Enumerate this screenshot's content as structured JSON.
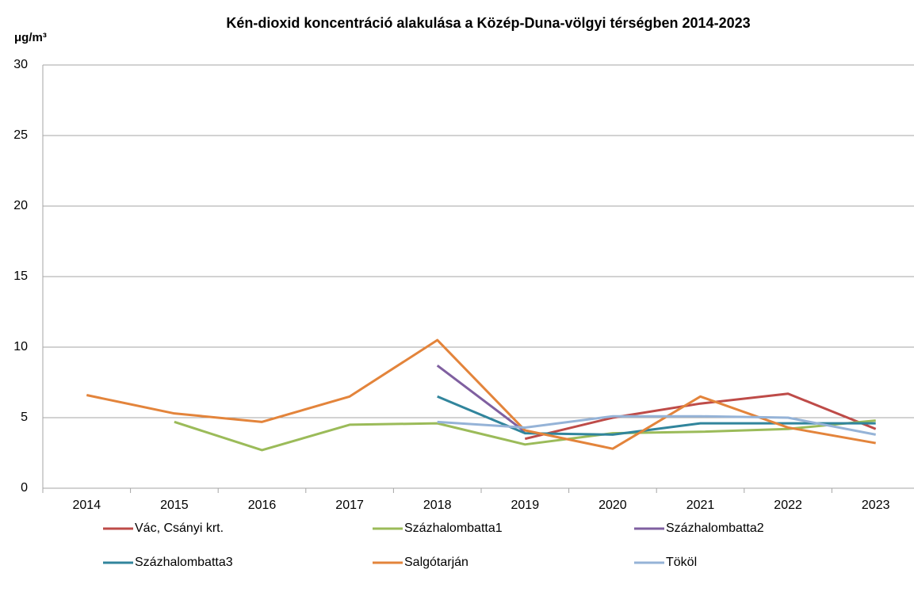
{
  "chart_data": {
    "type": "line",
    "title": "Kén-dioxid koncentráció alakulása a Közép-Duna-völgyi térségben 2014-2023",
    "y_label": "μg/m³",
    "categories": [
      "2014",
      "2015",
      "2016",
      "2017",
      "2018",
      "2019",
      "2020",
      "2021",
      "2022",
      "2023"
    ],
    "series": [
      {
        "name": "Vác, Csányi krt.",
        "color": "#be4b48",
        "values": [
          null,
          null,
          null,
          null,
          null,
          3.5,
          5.0,
          6.0,
          6.7,
          4.2
        ]
      },
      {
        "name": "Százhalombatta1",
        "color": "#9bbb59",
        "values": [
          null,
          4.7,
          2.7,
          4.5,
          4.6,
          3.1,
          3.9,
          4.0,
          4.2,
          4.8
        ]
      },
      {
        "name": "Százhalombatta2",
        "color": "#7f5fa0",
        "values": [
          null,
          null,
          null,
          null,
          8.7,
          4.0,
          null,
          null,
          null,
          null
        ]
      },
      {
        "name": "Százhalombatta3",
        "color": "#31859c",
        "values": [
          null,
          null,
          null,
          null,
          6.5,
          3.9,
          3.8,
          4.6,
          4.6,
          4.6
        ]
      },
      {
        "name": "Salgótarján",
        "color": "#e3843b",
        "values": [
          6.6,
          5.3,
          4.7,
          6.5,
          10.5,
          4.1,
          2.8,
          6.5,
          4.3,
          3.2
        ]
      },
      {
        "name": "Tököl",
        "color": "#95b3d7",
        "values": [
          null,
          null,
          null,
          null,
          4.7,
          4.3,
          5.1,
          5.1,
          5.0,
          3.8
        ]
      }
    ],
    "ylim": [
      0,
      30
    ],
    "yticks": [
      0,
      5,
      10,
      15,
      20,
      25,
      30
    ],
    "grid": true,
    "legend": "bottom"
  }
}
